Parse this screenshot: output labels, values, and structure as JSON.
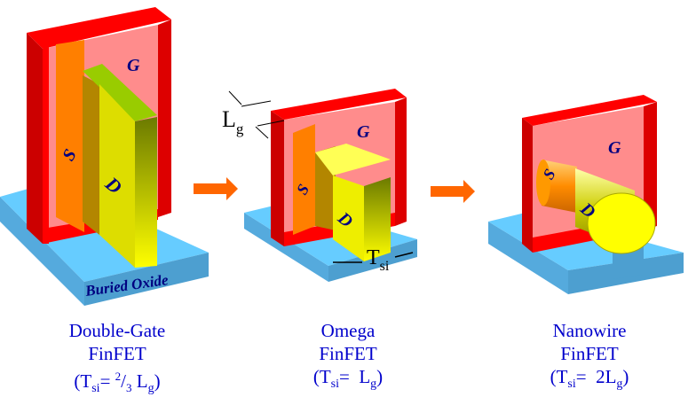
{
  "colors": {
    "gate": "#ff0000",
    "gate_inner": "#ff8c8c",
    "source": "#ff7f00",
    "drain": "#ffff00",
    "oxide": "#66ccff",
    "arrow": "#ff6600",
    "caption": "#0000cc",
    "label": "#000080"
  },
  "labels": {
    "gate": "G",
    "source": "S",
    "drain": "D",
    "oxide": "Buried Oxide",
    "lg": "L",
    "lg_sub": "g",
    "tsi": "T",
    "tsi_sub": "si"
  },
  "devices": [
    {
      "name": "Double-Gate",
      "type": "FinFET",
      "formula": [
        "(T",
        "si",
        "= ",
        "2",
        "/",
        "3",
        " L",
        "g",
        ")"
      ]
    },
    {
      "name": "Omega",
      "type": "FinFET",
      "formula": [
        "(T",
        "si",
        "=  L",
        "g",
        ")"
      ]
    },
    {
      "name": "Nanowire",
      "type": "FinFET",
      "formula": [
        "(T",
        "si",
        "=  2L",
        "g",
        ")"
      ]
    }
  ]
}
